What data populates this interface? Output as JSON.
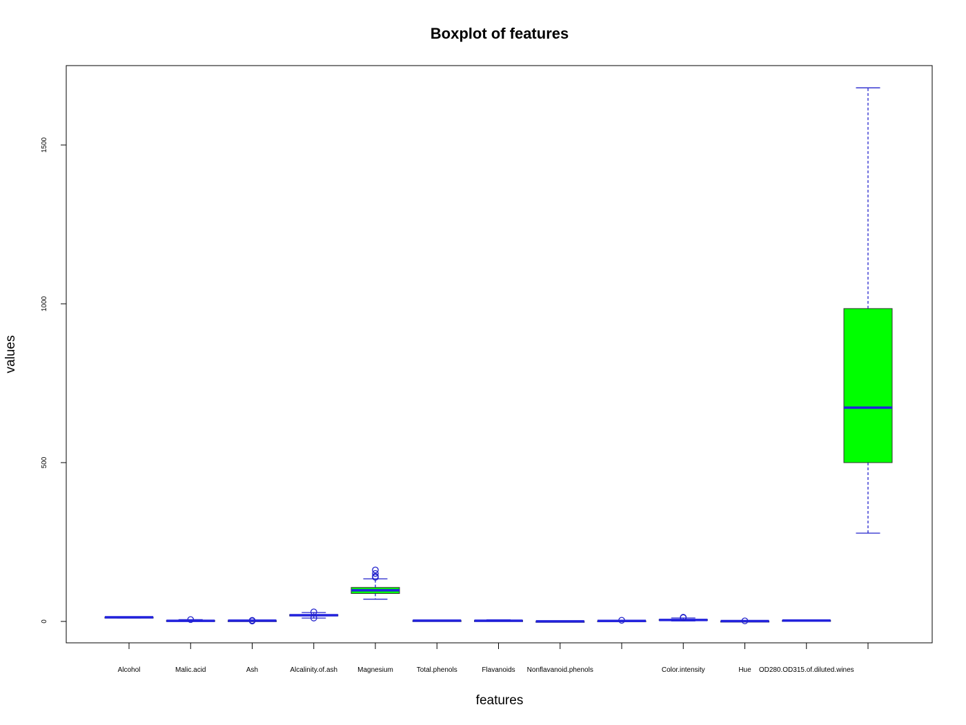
{
  "chart_data": {
    "type": "boxplot",
    "title": "Boxplot of features",
    "xlabel": "features",
    "ylabel": "values",
    "ylim": [
      -68,
      1750
    ],
    "yticks": [
      0,
      500,
      1000,
      1500
    ],
    "grid": false,
    "colors": {
      "box_fill": "#00ff00",
      "median": "#2222dd",
      "whisker": "#2222cc",
      "outlier": "#2222cc",
      "frame": "#000000"
    },
    "categories": [
      "Alcohol",
      "Malic.acid",
      "Ash",
      "Alcalinity.of.ash",
      "Magnesium",
      "Total.phenols",
      "Flavanoids",
      "Nonflavanoid.phenols",
      "",
      "Color.intensity",
      "Hue",
      "OD280.OD315.of.diluted.wines",
      ""
    ],
    "boxes": [
      {
        "min": 11.0,
        "q1": 12.4,
        "median": 13.0,
        "q3": 13.7,
        "max": 14.8,
        "outliers": []
      },
      {
        "min": 0.7,
        "q1": 1.6,
        "median": 1.9,
        "q3": 3.1,
        "max": 5.6,
        "outliers": [
          5.8
        ]
      },
      {
        "min": 1.7,
        "q1": 2.2,
        "median": 2.4,
        "q3": 2.6,
        "max": 3.1,
        "outliers": [
          1.4,
          3.2
        ]
      },
      {
        "min": 10.6,
        "q1": 17.2,
        "median": 19.5,
        "q3": 21.5,
        "max": 28,
        "outliers": [
          10.6,
          30
        ]
      },
      {
        "min": 70,
        "q1": 88,
        "median": 98,
        "q3": 107,
        "max": 134,
        "outliers": [
          139,
          142,
          151,
          162
        ]
      },
      {
        "min": 1.0,
        "q1": 1.7,
        "median": 2.4,
        "q3": 2.8,
        "max": 3.9,
        "outliers": []
      },
      {
        "min": 0.3,
        "q1": 1.2,
        "median": 2.1,
        "q3": 2.9,
        "max": 5.1,
        "outliers": []
      },
      {
        "min": 0.1,
        "q1": 0.3,
        "median": 0.3,
        "q3": 0.4,
        "max": 0.7,
        "outliers": []
      },
      {
        "min": 0.4,
        "q1": 1.2,
        "median": 1.6,
        "q3": 2.0,
        "max": 3.0,
        "outliers": [
          3.6
        ]
      },
      {
        "min": 1.3,
        "q1": 3.2,
        "median": 4.7,
        "q3": 6.2,
        "max": 10.8,
        "outliers": [
          11.8,
          12.5,
          13.0
        ]
      },
      {
        "min": 0.5,
        "q1": 0.8,
        "median": 1.0,
        "q3": 1.1,
        "max": 1.5,
        "outliers": [
          1.7
        ]
      },
      {
        "min": 1.3,
        "q1": 1.9,
        "median": 2.8,
        "q3": 3.2,
        "max": 4.0,
        "outliers": []
      },
      {
        "min": 278,
        "q1": 500,
        "median": 673,
        "q3": 985,
        "max": 1680,
        "outliers": []
      }
    ]
  }
}
